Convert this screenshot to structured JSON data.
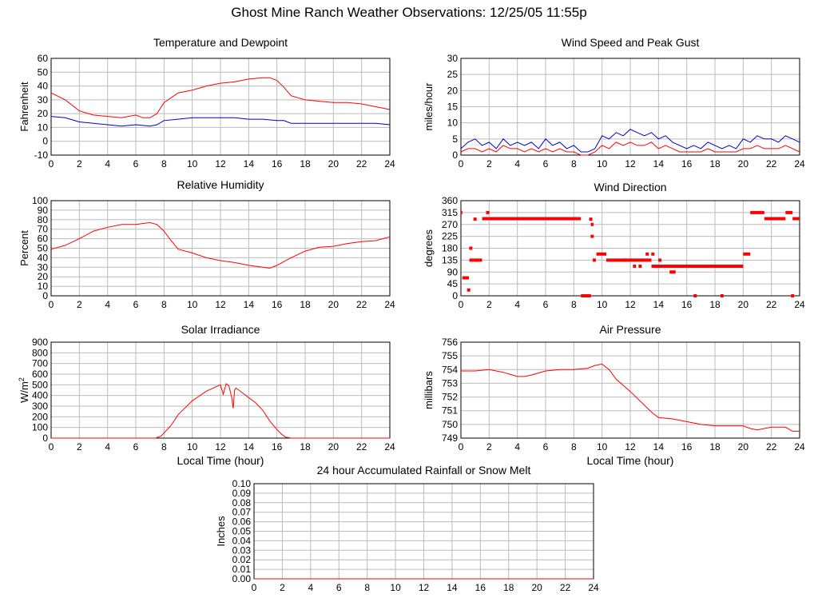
{
  "page": {
    "title": "Ghost Mine Ranch Weather Observations: 12/25/05 11:55p"
  },
  "colors": {
    "red": "#ff0000",
    "blue": "#0000cc",
    "grid": "#bbbbbb",
    "axis": "#000000"
  },
  "chart_data": [
    {
      "id": "temperature",
      "type": "line",
      "title": "Temperature and Dewpoint",
      "xlabel": "",
      "ylabel": "Fahrenheit",
      "xlim": [
        0,
        24
      ],
      "ylim": [
        -10,
        60
      ],
      "xticks": [
        "0",
        "2",
        "4",
        "6",
        "8",
        "10",
        "12",
        "14",
        "16",
        "18",
        "20",
        "22",
        "24"
      ],
      "yticks": [
        "-10",
        "0",
        "10",
        "20",
        "30",
        "40",
        "50",
        "60"
      ],
      "grid": true,
      "series": [
        {
          "color": "#ff0000",
          "x": [
            0,
            1,
            2,
            3,
            4,
            5,
            6,
            6.5,
            7,
            7.5,
            8,
            9,
            10,
            11,
            12,
            13,
            14,
            15,
            15.5,
            16,
            16.5,
            17,
            18,
            19,
            20,
            21,
            22,
            23,
            24
          ],
          "y": [
            35,
            30,
            22,
            19,
            18,
            17,
            19,
            17,
            17,
            20,
            28,
            35,
            37,
            40,
            42,
            43,
            45,
            46,
            46,
            44,
            39,
            33,
            30,
            29,
            28,
            28,
            27,
            25,
            23
          ]
        },
        {
          "color": "#0000cc",
          "x": [
            0,
            1,
            2,
            3,
            4,
            5,
            6,
            7,
            7.5,
            8,
            9,
            10,
            11,
            12,
            13,
            14,
            15,
            16,
            16.5,
            17,
            18,
            19,
            20,
            21,
            22,
            23,
            24
          ],
          "y": [
            18,
            17,
            14,
            13,
            12,
            11,
            12,
            11,
            12,
            15,
            16,
            17,
            17,
            17,
            17,
            16,
            16,
            15,
            15,
            13,
            13,
            13,
            13,
            13,
            13,
            13,
            12
          ]
        }
      ]
    },
    {
      "id": "wind-speed",
      "type": "line",
      "title": "Wind Speed and Peak Gust",
      "xlabel": "",
      "ylabel": "miles/hour",
      "xlim": [
        0,
        24
      ],
      "ylim": [
        0,
        30
      ],
      "xticks": [
        "0",
        "2",
        "4",
        "6",
        "8",
        "10",
        "12",
        "14",
        "16",
        "18",
        "20",
        "22",
        "24"
      ],
      "yticks": [
        "0",
        "5",
        "10",
        "15",
        "20",
        "25",
        "30"
      ],
      "grid": true,
      "series": [
        {
          "color": "#0000cc",
          "x": [
            0,
            0.5,
            1,
            1.5,
            2,
            2.5,
            3,
            3.5,
            4,
            4.5,
            5,
            5.5,
            6,
            6.5,
            7,
            7.5,
            8,
            8.5,
            9,
            9.5,
            10,
            10.5,
            11,
            11.5,
            12,
            12.5,
            13,
            13.5,
            14,
            14.5,
            15,
            15.5,
            16,
            16.5,
            17,
            17.5,
            18,
            18.5,
            19,
            19.5,
            20,
            20.5,
            21,
            21.5,
            22,
            22.5,
            23,
            23.5,
            24
          ],
          "y": [
            2,
            4,
            5,
            3,
            4,
            2,
            5,
            3,
            4,
            3,
            4,
            2,
            5,
            3,
            4,
            2,
            3,
            1,
            1,
            2,
            6,
            5,
            7,
            6,
            8,
            7,
            6,
            7,
            5,
            6,
            4,
            3,
            2,
            3,
            2,
            4,
            3,
            2,
            3,
            2,
            5,
            4,
            6,
            5,
            5,
            4,
            6,
            5,
            4
          ]
        },
        {
          "color": "#ff0000",
          "x": [
            0,
            0.5,
            1,
            1.5,
            2,
            2.5,
            3,
            3.5,
            4,
            4.5,
            5,
            5.5,
            6,
            6.5,
            7,
            7.5,
            8,
            8.5,
            9,
            9.5,
            10,
            10.5,
            11,
            11.5,
            12,
            12.5,
            13,
            13.5,
            14,
            14.5,
            15,
            15.5,
            16,
            16.5,
            17,
            17.5,
            18,
            18.5,
            19,
            19.5,
            20,
            20.5,
            21,
            21.5,
            22,
            22.5,
            23,
            23.5,
            24
          ],
          "y": [
            1,
            2,
            2,
            1,
            2,
            1,
            3,
            2,
            2,
            1,
            2,
            1,
            2,
            1,
            2,
            1,
            1,
            0,
            0,
            1,
            3,
            2,
            4,
            3,
            4,
            3,
            3,
            4,
            2,
            3,
            2,
            1,
            1,
            1,
            1,
            2,
            1,
            1,
            1,
            1,
            2,
            2,
            3,
            2,
            2,
            2,
            3,
            2,
            1
          ]
        }
      ]
    },
    {
      "id": "humidity",
      "type": "line",
      "title": "Relative Humidity",
      "xlabel": "",
      "ylabel": "Percent",
      "xlim": [
        0,
        24
      ],
      "ylim": [
        0,
        100
      ],
      "xticks": [
        "0",
        "2",
        "4",
        "6",
        "8",
        "10",
        "12",
        "14",
        "16",
        "18",
        "20",
        "22",
        "24"
      ],
      "yticks": [
        "0",
        "10",
        "20",
        "30",
        "40",
        "50",
        "60",
        "70",
        "80",
        "90",
        "100"
      ],
      "grid": true,
      "series": [
        {
          "color": "#ff0000",
          "x": [
            0,
            1,
            2,
            3,
            4,
            5,
            6,
            7,
            7.5,
            8,
            8.5,
            9,
            10,
            11,
            12,
            13,
            14,
            15,
            15.5,
            16,
            17,
            18,
            19,
            20,
            21,
            22,
            23,
            24
          ],
          "y": [
            49,
            53,
            60,
            68,
            72,
            75,
            75,
            77,
            75,
            68,
            58,
            49,
            45,
            40,
            37,
            35,
            32,
            30,
            29,
            32,
            40,
            47,
            51,
            52,
            55,
            57,
            58,
            62
          ]
        }
      ]
    },
    {
      "id": "wind-direction",
      "type": "scatter",
      "title": "Wind Direction",
      "xlabel": "",
      "ylabel": "degrees",
      "xlim": [
        0,
        24
      ],
      "ylim": [
        0,
        360
      ],
      "xticks": [
        "0",
        "2",
        "4",
        "6",
        "8",
        "10",
        "12",
        "14",
        "16",
        "18",
        "20",
        "22",
        "24"
      ],
      "yticks": [
        "0",
        "45",
        "90",
        "135",
        "180",
        "225",
        "270",
        "315",
        "360"
      ],
      "grid": true,
      "series": [
        {
          "color": "#ff0000",
          "segments": [
            [
              0,
              0.1,
              315
            ],
            [
              0.1,
              0.5,
              68
            ],
            [
              0.6,
              0.9,
              135
            ],
            [
              0.9,
              1.5,
              135
            ],
            [
              1.5,
              2,
              292
            ],
            [
              2,
              8.5,
              292
            ],
            [
              8.5,
              9.2,
              0
            ],
            [
              9.2,
              9.4,
              270
            ],
            [
              9.6,
              10.3,
              158
            ],
            [
              10.3,
              12,
              135
            ],
            [
              12,
              13.5,
              135
            ],
            [
              13.5,
              14.8,
              112
            ],
            [
              14.8,
              20,
              112
            ],
            [
              20,
              20.5,
              158
            ],
            [
              20.5,
              21.5,
              315
            ],
            [
              21.5,
              23,
              292
            ],
            [
              23,
              23.5,
              315
            ],
            [
              23.5,
              24,
              292
            ]
          ],
          "points": [
            [
              0.3,
              68
            ],
            [
              0.45,
              68
            ],
            [
              0.55,
              22
            ],
            [
              0.7,
              180
            ],
            [
              1.0,
              290
            ],
            [
              1.9,
              315
            ],
            [
              8.8,
              0
            ],
            [
              9.1,
              0
            ],
            [
              9.3,
              225
            ],
            [
              9.45,
              135
            ],
            [
              11.6,
              135
            ],
            [
              12.3,
              112
            ],
            [
              12.7,
              112
            ],
            [
              13.2,
              158
            ],
            [
              13.6,
              158
            ],
            [
              14.1,
              135
            ],
            [
              14.9,
              90
            ],
            [
              15.1,
              90
            ],
            [
              16.6,
              0
            ],
            [
              18.5,
              0
            ],
            [
              23.5,
              0
            ],
            [
              9.2,
              290
            ]
          ]
        }
      ]
    },
    {
      "id": "solar",
      "type": "line",
      "title": "Solar Irradiance",
      "xlabel": "Local Time (hour)",
      "ylabel_base": "W/m",
      "ylabel_sup": "2",
      "xlim": [
        0,
        24
      ],
      "ylim": [
        0,
        900
      ],
      "xticks": [
        "0",
        "2",
        "4",
        "6",
        "8",
        "10",
        "12",
        "14",
        "16",
        "18",
        "20",
        "22",
        "24"
      ],
      "yticks": [
        "0",
        "100",
        "200",
        "300",
        "400",
        "500",
        "600",
        "700",
        "800",
        "900"
      ],
      "grid": true,
      "series": [
        {
          "color": "#ff0000",
          "x": [
            0,
            7.4,
            7.8,
            8.5,
            9,
            10,
            11,
            12,
            12.2,
            12.4,
            12.6,
            12.8,
            12.9,
            13.0,
            13.1,
            13.3,
            13.6,
            14,
            14.5,
            15,
            15.5,
            16,
            16.3,
            16.6,
            17,
            24
          ],
          "y": [
            0,
            0,
            20,
            120,
            220,
            350,
            440,
            500,
            410,
            510,
            490,
            380,
            280,
            450,
            470,
            450,
            420,
            380,
            330,
            260,
            160,
            80,
            40,
            10,
            0,
            0
          ]
        }
      ]
    },
    {
      "id": "pressure",
      "type": "line",
      "title": "Air Pressure",
      "xlabel": "Local Time (hour)",
      "ylabel": "millibars",
      "xlim": [
        0,
        24
      ],
      "ylim": [
        749,
        756
      ],
      "xticks": [
        "0",
        "2",
        "4",
        "6",
        "8",
        "10",
        "12",
        "14",
        "16",
        "18",
        "20",
        "22",
        "24"
      ],
      "yticks": [
        "749",
        "750",
        "751",
        "752",
        "753",
        "754",
        "755",
        "756"
      ],
      "grid": true,
      "series": [
        {
          "color": "#ff0000",
          "x": [
            0,
            1,
            2,
            3,
            4,
            4.5,
            5,
            6,
            7,
            8,
            9,
            9.5,
            10,
            10.5,
            11,
            12,
            13,
            13.5,
            14,
            15,
            16,
            17,
            18,
            19,
            20,
            20.5,
            21,
            22,
            23,
            23.5,
            24
          ],
          "y": [
            753.9,
            753.9,
            754.0,
            753.8,
            753.5,
            753.5,
            753.6,
            753.9,
            754.0,
            754.0,
            754.1,
            754.3,
            754.4,
            754.0,
            753.3,
            752.4,
            751.4,
            750.9,
            750.5,
            750.4,
            750.2,
            750.0,
            749.9,
            749.9,
            749.9,
            749.7,
            749.6,
            749.8,
            749.8,
            749.5,
            749.5
          ]
        }
      ]
    },
    {
      "id": "rainfall",
      "type": "line",
      "title": "24 hour Accumulated Rainfall or Snow Melt",
      "xlabel": "",
      "ylabel": "Inches",
      "xlim": [
        0,
        24
      ],
      "ylim": [
        0,
        0.1
      ],
      "xticks": [
        "0",
        "2",
        "4",
        "6",
        "8",
        "10",
        "12",
        "14",
        "16",
        "18",
        "20",
        "22",
        "24"
      ],
      "yticks": [
        "0.00",
        "0.01",
        "0.02",
        "0.03",
        "0.04",
        "0.05",
        "0.06",
        "0.07",
        "0.08",
        "0.09",
        "0.10"
      ],
      "grid": true,
      "series": [
        {
          "color": "#ff0000",
          "x": [
            0,
            24
          ],
          "y": [
            0,
            0
          ]
        }
      ]
    }
  ]
}
